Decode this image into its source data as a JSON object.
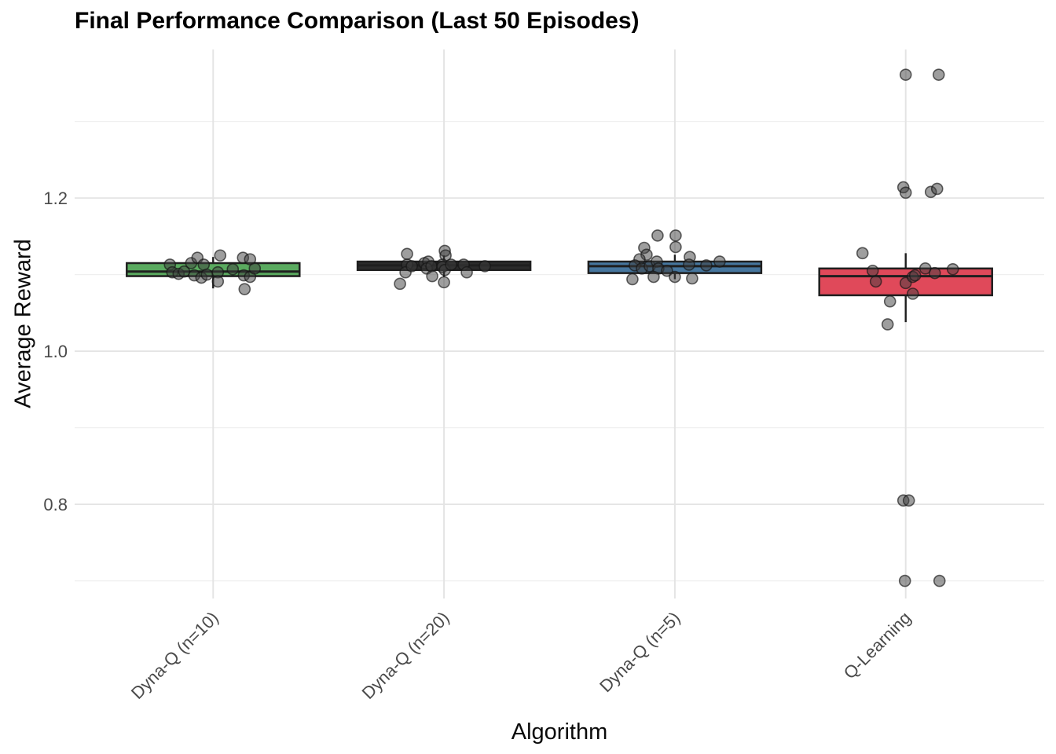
{
  "chart_data": {
    "type": "boxplot",
    "title": "Final Performance Comparison (Last 50 Episodes)",
    "xlabel": "Algorithm",
    "ylabel": "Average Reward",
    "ylim": [
      0.677,
      1.394
    ],
    "y_major_ticks": [
      {
        "value": 0.8,
        "label": "0.8"
      },
      {
        "value": 1.0,
        "label": "1.0"
      },
      {
        "value": 1.2,
        "label": "1.2"
      }
    ],
    "y_minor_ticks": [
      0.7,
      0.9,
      1.1,
      1.3
    ],
    "grid": "horizontal major+minor, vertical at category centers, light gray on white",
    "legend": "none",
    "categories": [
      "Dyna-Q (n=10)",
      "Dyna-Q (n=20)",
      "Dyna-Q (n=5)",
      "Q-Learning"
    ],
    "colors": {
      "box_border": "#1f1f1f",
      "point_fill": "#3d3d3d",
      "point_stroke": "#141414",
      "grid_major": "#e4e4e4",
      "grid_minor": "#efefef",
      "tick_label": "#4a4a4a",
      "text": "#000000"
    },
    "groups": [
      {
        "label": "Dyna-Q (n=10)",
        "fill": "#5aaa5f",
        "box": {
          "whisker_low": 1.082,
          "q1": 1.098,
          "median": 1.104,
          "q3": 1.115,
          "whisker_high": 1.123
        },
        "points": [
          [
            -55,
            1.113
          ],
          [
            -52,
            1.103
          ],
          [
            -44,
            1.101
          ],
          [
            -37,
            1.104
          ],
          [
            -28,
            1.115
          ],
          [
            -20,
            1.122
          ],
          [
            -24,
            1.099
          ],
          [
            -15,
            1.096
          ],
          [
            -12,
            1.113
          ],
          [
            -8,
            1.1
          ],
          [
            9,
            1.125
          ],
          [
            6,
            1.103
          ],
          [
            6,
            1.091
          ],
          [
            25,
            1.107
          ],
          [
            38,
            1.122
          ],
          [
            47,
            1.12
          ],
          [
            39,
            1.099
          ],
          [
            47,
            1.097
          ],
          [
            40,
            1.081
          ],
          [
            53,
            1.108
          ]
        ]
      },
      {
        "label": "Dyna-Q (n=20)",
        "fill": "#2b2b2b",
        "box": {
          "whisker_low": 1.097,
          "q1": 1.106,
          "median": 1.112,
          "q3": 1.117,
          "whisker_high": 1.125
        },
        "points": [
          [
            -47,
            1.127
          ],
          [
            -47,
            1.113
          ],
          [
            -49,
            1.103
          ],
          [
            -56,
            1.088
          ],
          [
            -41,
            1.111
          ],
          [
            -25,
            1.115
          ],
          [
            -20,
            1.117
          ],
          [
            -22,
            1.108
          ],
          [
            -16,
            1.111
          ],
          [
            -15,
            1.098
          ],
          [
            1,
            1.131
          ],
          [
            2,
            1.125
          ],
          [
            -2,
            1.113
          ],
          [
            -2,
            1.11
          ],
          [
            1,
            1.106
          ],
          [
            0,
            1.09
          ],
          [
            9,
            1.113
          ],
          [
            25,
            1.113
          ],
          [
            29,
            1.103
          ],
          [
            52,
            1.111
          ]
        ]
      },
      {
        "label": "Dyna-Q (n=5)",
        "fill": "#46769e",
        "box": {
          "whisker_low": 1.094,
          "q1": 1.102,
          "median": 1.111,
          "q3": 1.117,
          "whisker_high": 1.126
        },
        "points": [
          [
            -22,
            1.151
          ],
          [
            1,
            1.151
          ],
          [
            1,
            1.136
          ],
          [
            -39,
            1.135
          ],
          [
            -36,
            1.126
          ],
          [
            -45,
            1.12
          ],
          [
            -51,
            1.112
          ],
          [
            -42,
            1.108
          ],
          [
            -32,
            1.111
          ],
          [
            -23,
            1.117
          ],
          [
            -21,
            1.108
          ],
          [
            -10,
            1.105
          ],
          [
            0,
            1.097
          ],
          [
            19,
            1.123
          ],
          [
            18,
            1.113
          ],
          [
            22,
            1.095
          ],
          [
            40,
            1.112
          ],
          [
            57,
            1.117
          ],
          [
            -54,
            1.094
          ],
          [
            -27,
            1.097
          ]
        ]
      },
      {
        "label": "Q-Learning",
        "fill": "#e0495a",
        "box": {
          "whisker_low": 1.038,
          "q1": 1.073,
          "median": 1.098,
          "q3": 1.108,
          "whisker_high": 1.128
        },
        "points": [
          [
            0,
            1.361
          ],
          [
            42,
            1.361
          ],
          [
            -3,
            1.214
          ],
          [
            0,
            1.207
          ],
          [
            32,
            1.208
          ],
          [
            40,
            1.212
          ],
          [
            -55,
            1.128
          ],
          [
            -42,
            1.105
          ],
          [
            -38,
            1.091
          ],
          [
            -20,
            1.065
          ],
          [
            -23,
            1.035
          ],
          [
            0,
            1.089
          ],
          [
            9,
            1.097
          ],
          [
            12,
            1.099
          ],
          [
            25,
            1.108
          ],
          [
            37,
            1.102
          ],
          [
            60,
            1.107
          ],
          [
            9,
            1.075
          ],
          [
            -3,
            0.805
          ],
          [
            4,
            0.805
          ],
          [
            -1,
            0.7
          ],
          [
            43,
            0.7
          ]
        ]
      }
    ]
  }
}
